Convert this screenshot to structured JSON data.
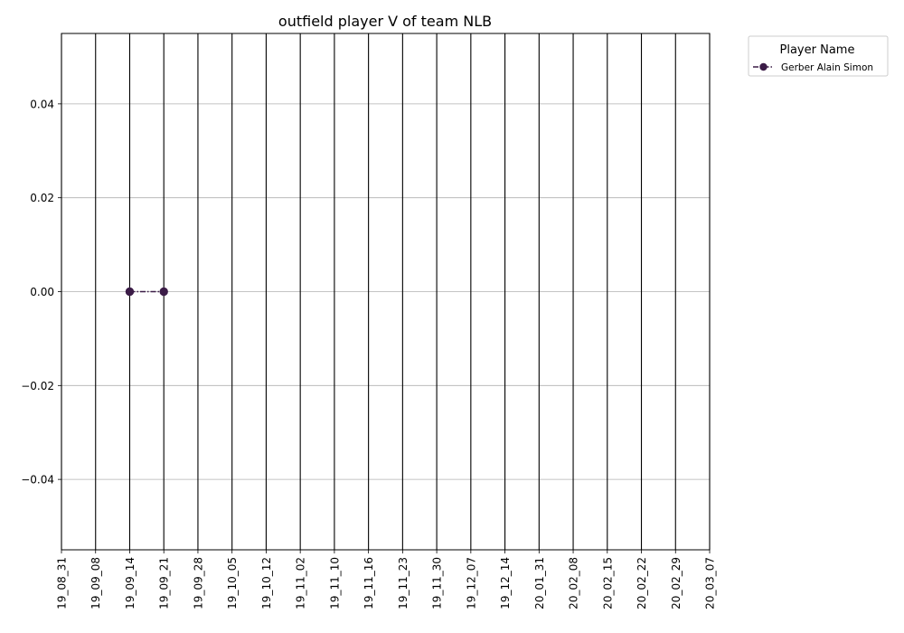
{
  "chart_data": {
    "type": "line",
    "title": "outfield player V of team NLB",
    "xlabel": "",
    "ylabel": "",
    "categories": [
      "19_08_31",
      "19_09_08",
      "19_09_14",
      "19_09_21",
      "19_09_28",
      "19_10_05",
      "19_10_12",
      "19_11_02",
      "19_11_10",
      "19_11_16",
      "19_11_23",
      "19_11_30",
      "19_12_07",
      "19_12_14",
      "20_01_31",
      "20_02_08",
      "20_02_15",
      "20_02_22",
      "20_02_29",
      "20_03_07"
    ],
    "ylim": [
      -0.055,
      0.055
    ],
    "yticks": [
      -0.04,
      -0.02,
      0.0,
      0.02,
      0.04
    ],
    "ytick_labels": [
      "−0.04",
      "−0.02",
      "0.00",
      "0.02",
      "0.04"
    ],
    "grid": "horizontal",
    "vertical_lines_at_categories": true,
    "series": [
      {
        "name": "Gerber Alain Simon",
        "color": "#3b1c47",
        "linestyle": "dash-dot",
        "marker": "circle",
        "points": [
          {
            "x": "19_09_14",
            "y": 0.0
          },
          {
            "x": "19_09_21",
            "y": 0.0
          }
        ]
      }
    ],
    "legend": {
      "title": "Player Name",
      "placement": "outside-top-right"
    }
  }
}
